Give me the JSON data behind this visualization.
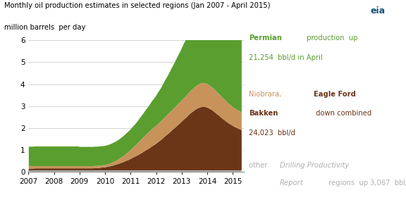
{
  "title": "Monthly oil production estimates in selected regions (Jan 2007 - April 2015)",
  "ylabel": "million barrels  per day",
  "ylim": [
    0,
    6
  ],
  "yticks": [
    0,
    1,
    2,
    3,
    4,
    5,
    6
  ],
  "xlim_start": 2007.0,
  "xlim_end": 2015.42,
  "xtick_labels": [
    "2007",
    "2008",
    "2009",
    "2010",
    "2011",
    "2012",
    "2013",
    "2014",
    "2015"
  ],
  "xtick_positions": [
    2007,
    2008,
    2009,
    2010,
    2011,
    2012,
    2013,
    2014,
    2015
  ],
  "color_other": "#b0b0b0",
  "color_bakken": "#6b3518",
  "color_niobrara": "#c8935a",
  "color_permian": "#5a9e2f",
  "x_data": [
    2007.0,
    2007.08,
    2007.17,
    2007.25,
    2007.33,
    2007.42,
    2007.5,
    2007.58,
    2007.67,
    2007.75,
    2007.83,
    2007.92,
    2008.0,
    2008.08,
    2008.17,
    2008.25,
    2008.33,
    2008.42,
    2008.5,
    2008.58,
    2008.67,
    2008.75,
    2008.83,
    2008.92,
    2009.0,
    2009.08,
    2009.17,
    2009.25,
    2009.33,
    2009.42,
    2009.5,
    2009.58,
    2009.67,
    2009.75,
    2009.83,
    2009.92,
    2010.0,
    2010.08,
    2010.17,
    2010.25,
    2010.33,
    2010.42,
    2010.5,
    2010.58,
    2010.67,
    2010.75,
    2010.83,
    2010.92,
    2011.0,
    2011.08,
    2011.17,
    2011.25,
    2011.33,
    2011.42,
    2011.5,
    2011.58,
    2011.67,
    2011.75,
    2011.83,
    2011.92,
    2012.0,
    2012.08,
    2012.17,
    2012.25,
    2012.33,
    2012.42,
    2012.5,
    2012.58,
    2012.67,
    2012.75,
    2012.83,
    2012.92,
    2013.0,
    2013.08,
    2013.17,
    2013.25,
    2013.33,
    2013.42,
    2013.5,
    2013.58,
    2013.67,
    2013.75,
    2013.83,
    2013.92,
    2014.0,
    2014.08,
    2014.17,
    2014.25,
    2014.33,
    2014.42,
    2014.5,
    2014.58,
    2014.67,
    2014.75,
    2014.83,
    2014.92,
    2015.0,
    2015.08,
    2015.17,
    2015.25,
    2015.33
  ],
  "other_data": [
    0.08,
    0.08,
    0.08,
    0.08,
    0.08,
    0.08,
    0.08,
    0.08,
    0.08,
    0.08,
    0.08,
    0.08,
    0.08,
    0.08,
    0.08,
    0.08,
    0.08,
    0.08,
    0.08,
    0.08,
    0.08,
    0.08,
    0.08,
    0.08,
    0.08,
    0.08,
    0.08,
    0.08,
    0.08,
    0.08,
    0.08,
    0.08,
    0.08,
    0.08,
    0.08,
    0.08,
    0.08,
    0.08,
    0.08,
    0.08,
    0.08,
    0.08,
    0.08,
    0.08,
    0.08,
    0.08,
    0.08,
    0.08,
    0.08,
    0.08,
    0.08,
    0.08,
    0.08,
    0.08,
    0.08,
    0.08,
    0.08,
    0.08,
    0.08,
    0.08,
    0.08,
    0.08,
    0.08,
    0.08,
    0.08,
    0.08,
    0.08,
    0.08,
    0.08,
    0.08,
    0.08,
    0.08,
    0.08,
    0.08,
    0.08,
    0.08,
    0.08,
    0.08,
    0.08,
    0.08,
    0.08,
    0.08,
    0.08,
    0.08,
    0.08,
    0.08,
    0.08,
    0.08,
    0.08,
    0.08,
    0.08,
    0.08,
    0.08,
    0.08,
    0.08,
    0.08,
    0.08,
    0.08,
    0.08,
    0.08,
    0.08
  ],
  "bakken_data": [
    0.08,
    0.08,
    0.08,
    0.09,
    0.09,
    0.09,
    0.09,
    0.09,
    0.09,
    0.09,
    0.09,
    0.09,
    0.09,
    0.09,
    0.09,
    0.09,
    0.09,
    0.09,
    0.09,
    0.09,
    0.09,
    0.09,
    0.09,
    0.09,
    0.09,
    0.09,
    0.09,
    0.09,
    0.09,
    0.09,
    0.09,
    0.1,
    0.1,
    0.11,
    0.12,
    0.13,
    0.14,
    0.16,
    0.18,
    0.2,
    0.23,
    0.26,
    0.29,
    0.32,
    0.36,
    0.4,
    0.44,
    0.48,
    0.53,
    0.58,
    0.63,
    0.68,
    0.73,
    0.79,
    0.85,
    0.91,
    0.97,
    1.03,
    1.1,
    1.16,
    1.23,
    1.3,
    1.38,
    1.46,
    1.55,
    1.63,
    1.71,
    1.8,
    1.89,
    1.97,
    2.06,
    2.15,
    2.24,
    2.33,
    2.42,
    2.51,
    2.6,
    2.68,
    2.75,
    2.81,
    2.86,
    2.89,
    2.9,
    2.89,
    2.86,
    2.81,
    2.75,
    2.68,
    2.6,
    2.52,
    2.44,
    2.36,
    2.28,
    2.21,
    2.14,
    2.08,
    2.02,
    1.97,
    1.92,
    1.88,
    1.84
  ],
  "niobrara_data": [
    0.1,
    0.1,
    0.1,
    0.1,
    0.1,
    0.1,
    0.1,
    0.1,
    0.1,
    0.1,
    0.1,
    0.1,
    0.1,
    0.1,
    0.1,
    0.1,
    0.1,
    0.1,
    0.1,
    0.1,
    0.1,
    0.1,
    0.1,
    0.1,
    0.1,
    0.1,
    0.1,
    0.1,
    0.1,
    0.1,
    0.1,
    0.1,
    0.1,
    0.1,
    0.1,
    0.1,
    0.1,
    0.11,
    0.12,
    0.14,
    0.16,
    0.18,
    0.2,
    0.23,
    0.26,
    0.29,
    0.33,
    0.37,
    0.41,
    0.45,
    0.49,
    0.54,
    0.59,
    0.63,
    0.67,
    0.71,
    0.74,
    0.77,
    0.79,
    0.81,
    0.82,
    0.84,
    0.85,
    0.87,
    0.88,
    0.9,
    0.91,
    0.92,
    0.93,
    0.94,
    0.95,
    0.96,
    0.97,
    0.98,
    0.99,
    1.01,
    1.02,
    1.04,
    1.05,
    1.07,
    1.08,
    1.09,
    1.09,
    1.09,
    1.08,
    1.07,
    1.05,
    1.04,
    1.02,
    1.0,
    0.98,
    0.96,
    0.94,
    0.92,
    0.9,
    0.88,
    0.86,
    0.84,
    0.83,
    0.82,
    0.81
  ],
  "permian_data": [
    0.9,
    0.9,
    0.9,
    0.9,
    0.9,
    0.9,
    0.9,
    0.9,
    0.9,
    0.9,
    0.9,
    0.9,
    0.9,
    0.9,
    0.9,
    0.9,
    0.9,
    0.9,
    0.9,
    0.9,
    0.9,
    0.9,
    0.9,
    0.9,
    0.88,
    0.88,
    0.88,
    0.88,
    0.88,
    0.88,
    0.88,
    0.88,
    0.88,
    0.88,
    0.88,
    0.88,
    0.88,
    0.88,
    0.88,
    0.88,
    0.88,
    0.88,
    0.89,
    0.9,
    0.91,
    0.92,
    0.93,
    0.94,
    0.95,
    0.97,
    0.99,
    1.01,
    1.04,
    1.07,
    1.1,
    1.14,
    1.18,
    1.23,
    1.28,
    1.33,
    1.39,
    1.45,
    1.52,
    1.59,
    1.67,
    1.75,
    1.83,
    1.92,
    2.01,
    2.11,
    2.2,
    2.3,
    2.4,
    2.5,
    2.6,
    2.69,
    2.78,
    2.86,
    2.93,
    2.99,
    3.04,
    3.08,
    3.11,
    3.12,
    3.12,
    3.11,
    3.09,
    3.07,
    3.04,
    3.01,
    2.98,
    2.96,
    2.96,
    2.98,
    3.02,
    3.08,
    3.17,
    3.27,
    3.39,
    3.5,
    3.6
  ]
}
